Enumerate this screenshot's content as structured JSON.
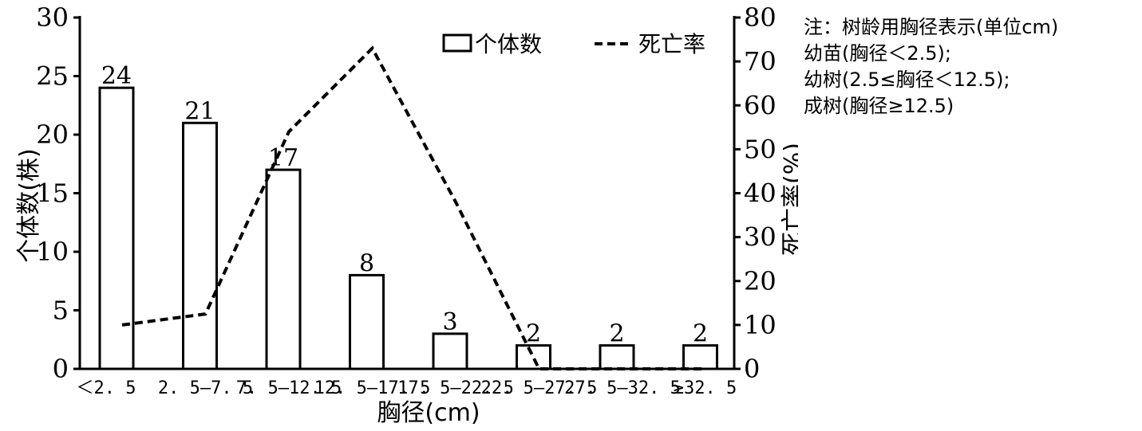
{
  "chart_data": {
    "type": "bar",
    "categories": [
      "<2.5",
      "2.5-7.5",
      "7.5-12.5",
      "12.5-17.5",
      "17.5-22.5",
      "22.5-27.5",
      "27.5-32.5",
      "≥32.5"
    ],
    "category_labels": [
      "＜2. 5",
      "2. 5–7. 5",
      "7. 5–12. 5",
      "12. 5–17. 5",
      "17. 5–22. 5",
      "22. 5–27. 5",
      "27. 5–32. 5",
      "≥32. 5"
    ],
    "series": [
      {
        "name": "个体数",
        "kind": "bar",
        "axis": "left",
        "values": [
          24,
          21,
          17,
          8,
          3,
          2,
          2,
          2
        ]
      },
      {
        "name": "死亡率",
        "kind": "line",
        "style": "dashed",
        "axis": "right",
        "values": [
          10,
          12.5,
          54,
          73,
          38,
          0,
          0,
          0
        ]
      }
    ],
    "data_labels": [
      "24",
      "21",
      "17",
      "8",
      "3",
      "2",
      "2",
      "2"
    ],
    "xlabel": "胸径(cm)",
    "ylabel_left": "个体数(株)",
    "ylabel_right": "死亡率(%)",
    "ylim_left": [
      0,
      30
    ],
    "yticks_left": [
      0,
      5,
      10,
      15,
      20,
      25,
      30
    ],
    "ylim_right": [
      0,
      80
    ],
    "yticks_right": [
      0,
      10,
      20,
      30,
      40,
      50,
      60,
      70,
      80
    ],
    "grid": false,
    "legend_position": "top-right"
  },
  "note": {
    "lines": [
      "注：树龄用胸径表示(单位cm)",
      "幼苗(胸径＜2.5);",
      "幼树(2.5≤胸径＜12.5);",
      "成树(胸径≥12.5)"
    ]
  },
  "colors": {
    "ink": "#000000",
    "bar_fill": "#ffffff"
  }
}
